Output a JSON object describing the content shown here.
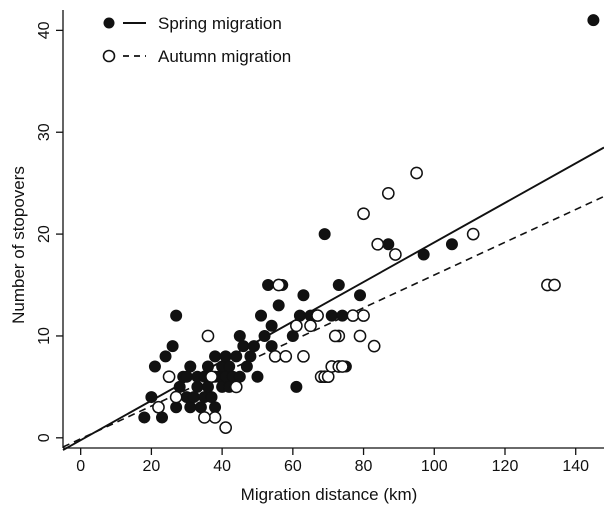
{
  "chart_data": {
    "type": "scatter",
    "xlabel": "Migration distance (km)",
    "ylabel": "Number of stopovers",
    "xlim": [
      -5,
      148
    ],
    "ylim": [
      -1,
      42
    ],
    "x_ticks": [
      0,
      20,
      40,
      60,
      80,
      100,
      120,
      140
    ],
    "y_ticks": [
      0,
      10,
      20,
      30,
      40
    ],
    "grid": false,
    "legend_position": "top-left",
    "series": [
      {
        "name": "Spring migration",
        "marker": "filled-circle",
        "line_style": "solid",
        "trendline": {
          "x": [
            -5,
            148
          ],
          "y": [
            -1.2,
            28.5
          ]
        },
        "points": [
          [
            18,
            2
          ],
          [
            20,
            4
          ],
          [
            21,
            7
          ],
          [
            22,
            3
          ],
          [
            23,
            2
          ],
          [
            24,
            8
          ],
          [
            25,
            6
          ],
          [
            26,
            9
          ],
          [
            27,
            12
          ],
          [
            28,
            5
          ],
          [
            27,
            3
          ],
          [
            29,
            6
          ],
          [
            30,
            4
          ],
          [
            30,
            6
          ],
          [
            31,
            3
          ],
          [
            31,
            7
          ],
          [
            32,
            4
          ],
          [
            33,
            5
          ],
          [
            33,
            6
          ],
          [
            34,
            3
          ],
          [
            35,
            4
          ],
          [
            35,
            6
          ],
          [
            36,
            5
          ],
          [
            36,
            7
          ],
          [
            37,
            4
          ],
          [
            38,
            3
          ],
          [
            38,
            6
          ],
          [
            38,
            8
          ],
          [
            39,
            6
          ],
          [
            40,
            5
          ],
          [
            40,
            7
          ],
          [
            41,
            6
          ],
          [
            41,
            8
          ],
          [
            42,
            5
          ],
          [
            42,
            7
          ],
          [
            43,
            6
          ],
          [
            44,
            8
          ],
          [
            45,
            10
          ],
          [
            45,
            6
          ],
          [
            46,
            9
          ],
          [
            47,
            7
          ],
          [
            48,
            8
          ],
          [
            49,
            9
          ],
          [
            50,
            6
          ],
          [
            51,
            12
          ],
          [
            52,
            10
          ],
          [
            53,
            15
          ],
          [
            54,
            9
          ],
          [
            54,
            11
          ],
          [
            56,
            13
          ],
          [
            57,
            15
          ],
          [
            60,
            10
          ],
          [
            61,
            5
          ],
          [
            62,
            12
          ],
          [
            63,
            14
          ],
          [
            65,
            12
          ],
          [
            69,
            20
          ],
          [
            71,
            12
          ],
          [
            72,
            10
          ],
          [
            73,
            15
          ],
          [
            74,
            12
          ],
          [
            75,
            7
          ],
          [
            79,
            14
          ],
          [
            87,
            19
          ],
          [
            97,
            18
          ],
          [
            105,
            19
          ],
          [
            145,
            41
          ]
        ]
      },
      {
        "name": "Autumn migration",
        "marker": "open-circle",
        "line_style": "dashed",
        "trendline": {
          "x": [
            -5,
            148
          ],
          "y": [
            -0.9,
            23.7
          ]
        },
        "points": [
          [
            22,
            3
          ],
          [
            25,
            6
          ],
          [
            27,
            4
          ],
          [
            36,
            10
          ],
          [
            37,
            6
          ],
          [
            38,
            2
          ],
          [
            35,
            2
          ],
          [
            41,
            1
          ],
          [
            44,
            5
          ],
          [
            55,
            8
          ],
          [
            56,
            15
          ],
          [
            58,
            8
          ],
          [
            61,
            11
          ],
          [
            63,
            8
          ],
          [
            65,
            11
          ],
          [
            67,
            12
          ],
          [
            68,
            6
          ],
          [
            69,
            6
          ],
          [
            70,
            6
          ],
          [
            71,
            7
          ],
          [
            73,
            10
          ],
          [
            73,
            7
          ],
          [
            74,
            7
          ],
          [
            77,
            12
          ],
          [
            79,
            10
          ],
          [
            80,
            12
          ],
          [
            80,
            22
          ],
          [
            83,
            9
          ],
          [
            84,
            19
          ],
          [
            87,
            24
          ],
          [
            89,
            18
          ],
          [
            95,
            26
          ],
          [
            111,
            20
          ],
          [
            132,
            15
          ],
          [
            134,
            15
          ],
          [
            72,
            10
          ]
        ]
      }
    ]
  }
}
